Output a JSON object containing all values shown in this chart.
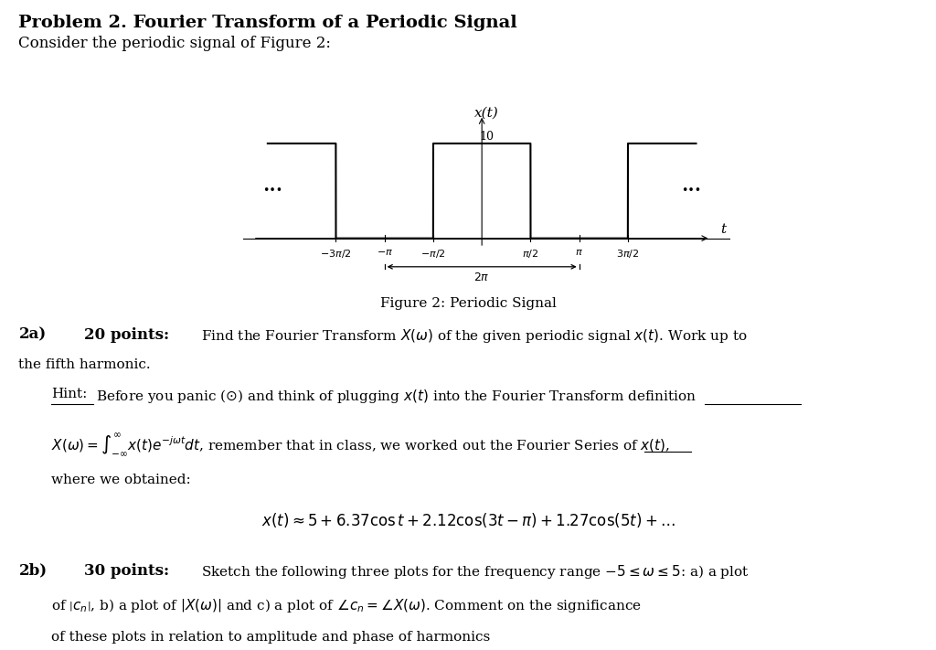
{
  "title": "Problem 2. Fourier Transform of a Periodic Signal",
  "subtitle": "Consider the periodic signal of Figure 2:",
  "figure_caption": "Figure 2: Periodic Signal",
  "signal_label": "x(t)",
  "t_label": "t",
  "period_label": "2π",
  "amplitude_label": "10",
  "part_2a_label": "2a)",
  "part_2a_points": "20 points:",
  "part_2b_label": "2b)",
  "part_2b_points": "30 points:",
  "bg_color": "#ffffff",
  "text_color": "#000000"
}
